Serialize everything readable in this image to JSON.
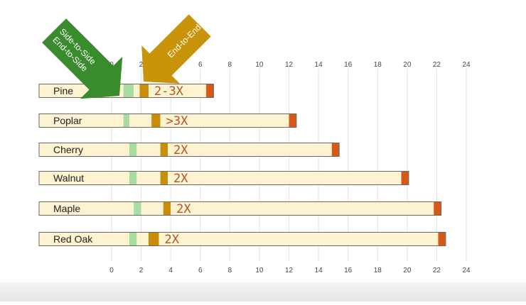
{
  "chart_data": {
    "type": "bar",
    "orientation": "horizontal",
    "stacked": true,
    "title": "",
    "xlabel": "",
    "ylabel": "",
    "xlim": [
      0,
      24
    ],
    "xticks": [
      0,
      2,
      4,
      6,
      8,
      10,
      12,
      14,
      16,
      18,
      20,
      22,
      24
    ],
    "grid": true,
    "legend": "none",
    "categories": [
      "Pine",
      "Poplar",
      "Cherry",
      "Walnut",
      "Maple",
      "Red Oak"
    ],
    "series": [
      {
        "color": "#fdf3d0",
        "values": [
          0.8,
          0.8,
          1.2,
          1.2,
          1.5,
          1.2
        ]
      },
      {
        "color": "#a8dca0",
        "values": [
          0.7,
          0.4,
          0.5,
          0.5,
          0.5,
          0.5
        ]
      },
      {
        "color": "#fdf3d0",
        "values": [
          0.4,
          1.5,
          1.6,
          1.6,
          1.5,
          0.8
        ]
      },
      {
        "color": "#c98d0a",
        "values": [
          0.6,
          0.6,
          0.5,
          0.5,
          0.5,
          0.7
        ]
      },
      {
        "color": "#fdf3d0",
        "values": [
          3.9,
          8.7,
          11.1,
          15.8,
          17.8,
          18.9
        ]
      },
      {
        "color": "#d65a16",
        "values": [
          0.5,
          0.5,
          0.5,
          0.5,
          0.5,
          0.5
        ]
      }
    ],
    "annotations": [
      "2-3X",
      ">3X",
      "2X",
      "2X",
      "2X",
      "2X"
    ],
    "arrows": [
      {
        "lines": [
          "Side-to-Side",
          "End-to-Side"
        ],
        "color": "#3a8a2e"
      },
      {
        "lines": [
          "End-to-End"
        ],
        "color": "#c9940a"
      }
    ]
  }
}
